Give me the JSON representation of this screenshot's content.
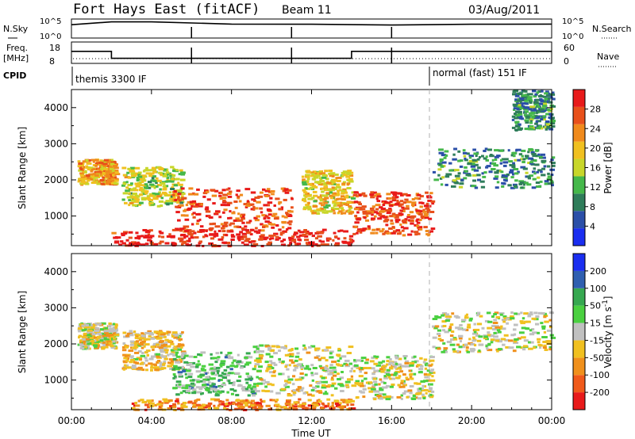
{
  "header": {
    "radar": "Fort Hays East (fitACF)",
    "beam": "Beam 11",
    "date": "03/Aug/2011"
  },
  "top_panels": {
    "nsky": {
      "label": "N.Sky",
      "tick_hi": "10^5",
      "tick_lo": "10^0"
    },
    "nsearch": {
      "label": "N.Search",
      "tick_hi": "10^5",
      "tick_lo": "10^0"
    },
    "freq": {
      "label_line1": "Freq.",
      "label_line2": "[MHz]",
      "tick_hi": "18",
      "tick_lo": "8"
    },
    "nave": {
      "label": "Nave",
      "tick_hi": "60",
      "tick_lo": "0"
    },
    "cpid": {
      "label": "CPID",
      "modes": [
        {
          "name": "themis 3300 IF",
          "start_hour": 0
        },
        {
          "name": "normal (fast) 151 IF",
          "start_hour": 18
        }
      ]
    }
  },
  "colors": {
    "power": [
      "#1a2ef0",
      "#2b4fa8",
      "#2f7d5a",
      "#45b84a",
      "#c8d62a",
      "#f0c020",
      "#f08a1c",
      "#e8501a",
      "#e81a1a"
    ],
    "velocity": [
      "#e81a1a",
      "#f05a1a",
      "#f0901c",
      "#f0c020",
      "#c0c0c0",
      "#4ad040",
      "#36a850",
      "#2f5fb0",
      "#1a2ef0"
    ]
  },
  "chart_data": [
    {
      "type": "line",
      "panel": "N.Sky / N.Search",
      "scale": "log",
      "ylim": [
        1,
        100000
      ],
      "x": [
        "00:00",
        "02:00",
        "04:00",
        "08:00",
        "12:00",
        "16:00",
        "20:00",
        "24:00"
      ],
      "series": [
        {
          "name": "N.Sky",
          "values": [
            5000,
            40000,
            40000,
            8000,
            7000,
            4000,
            7000,
            8000
          ]
        }
      ]
    },
    {
      "type": "line",
      "panel": "Freq. / Nave",
      "x_hours": [
        0,
        2,
        2,
        14,
        14,
        24
      ],
      "series": [
        {
          "name": "Freq. [MHz]",
          "ylim": [
            8,
            18
          ],
          "values": [
            14,
            14,
            10,
            10,
            14,
            14
          ]
        }
      ]
    },
    {
      "type": "heatmap",
      "title": "Power",
      "xlabel": "Time UT",
      "ylabel": "Slant Range [km]",
      "xticks": [
        "00:00",
        "04:00",
        "08:00",
        "12:00",
        "16:00",
        "20:00",
        "00:00"
      ],
      "yticks": [
        "1000",
        "2000",
        "3000",
        "4000"
      ],
      "ylim": [
        180,
        4500
      ],
      "colorbar": {
        "label": "Power [dB]",
        "ticks": [
          "28",
          "24",
          "20",
          "16",
          "12",
          "8",
          "4"
        ],
        "range": [
          0,
          30
        ]
      },
      "bands": [
        {
          "t0": 0.3,
          "t1": 2.2,
          "r0": 1900,
          "r1": 2600,
          "level": 0.65
        },
        {
          "t0": 2.5,
          "t1": 5.5,
          "r0": 1300,
          "r1": 2400,
          "level": 0.5
        },
        {
          "t0": 5.0,
          "t1": 11.0,
          "r0": 600,
          "r1": 1800,
          "level": 0.85
        },
        {
          "t0": 11.5,
          "t1": 14.0,
          "r0": 1100,
          "r1": 2300,
          "level": 0.6
        },
        {
          "t0": 14.0,
          "t1": 18.0,
          "r0": 500,
          "r1": 1700,
          "level": 0.85
        },
        {
          "t0": 18.0,
          "t1": 24.0,
          "r0": 1800,
          "r1": 2900,
          "level": 0.3
        },
        {
          "t0": 22.0,
          "t1": 24.0,
          "r0": 3400,
          "r1": 4500,
          "level": 0.3
        },
        {
          "t0": 2.0,
          "t1": 14.0,
          "r0": 200,
          "r1": 650,
          "level": 0.95
        }
      ]
    },
    {
      "type": "heatmap",
      "title": "Velocity",
      "xlabel": "Time UT",
      "ylabel": "Slant Range [km]",
      "xticks": [
        "00:00",
        "04:00",
        "08:00",
        "12:00",
        "16:00",
        "20:00",
        "00:00"
      ],
      "yticks": [
        "1000",
        "2000",
        "3000",
        "4000"
      ],
      "ylim": [
        180,
        4500
      ],
      "colorbar": {
        "label": "Velocity [m s^-1]",
        "ticks": [
          "200",
          "100",
          "50",
          "15",
          "-15",
          "-50",
          "-100",
          "-200"
        ],
        "range": [
          -250,
          250
        ]
      },
      "bands": [
        {
          "t0": 0.3,
          "t1": 2.2,
          "r0": 1900,
          "r1": 2600,
          "level": 0.45
        },
        {
          "t0": 2.5,
          "t1": 5.5,
          "r0": 1300,
          "r1": 2400,
          "level": 0.4
        },
        {
          "t0": 5.0,
          "t1": 9.0,
          "r0": 600,
          "r1": 1800,
          "level": 0.62
        },
        {
          "t0": 9.0,
          "t1": 14.0,
          "r0": 600,
          "r1": 2000,
          "level": 0.47
        },
        {
          "t0": 14.0,
          "t1": 18.0,
          "r0": 500,
          "r1": 1700,
          "level": 0.45
        },
        {
          "t0": 18.0,
          "t1": 24.0,
          "r0": 1800,
          "r1": 2900,
          "level": 0.47
        },
        {
          "t0": 3.0,
          "t1": 14.0,
          "r0": 200,
          "r1": 500,
          "level": 0.25
        }
      ]
    }
  ],
  "axes": {
    "xticks": [
      "00:00",
      "04:00",
      "08:00",
      "12:00",
      "16:00",
      "20:00",
      "00:00"
    ],
    "xlabel": "Time UT",
    "ylabel": "Slant Range [km]",
    "yticks": [
      "1000",
      "2000",
      "3000",
      "4000"
    ]
  }
}
